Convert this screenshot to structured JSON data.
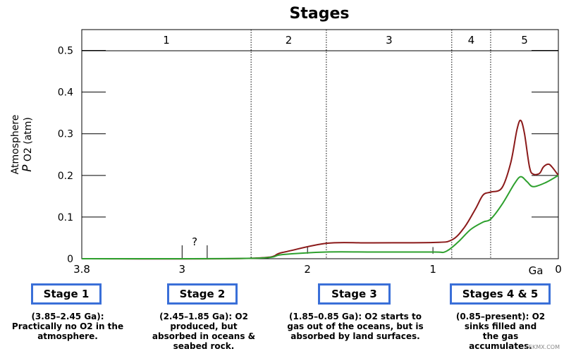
{
  "chart_data": {
    "type": "line",
    "title": "Stages",
    "ylabel_line1": "Atmosphere",
    "ylabel_italic": "P",
    "ylabel_rest": " O2 (atm)",
    "xunit": "Ga",
    "x_range": [
      3.8,
      0
    ],
    "ylim": [
      0,
      0.55
    ],
    "x_ticks": [
      {
        "v": 3.8,
        "label": "3.8"
      },
      {
        "v": 3,
        "label": "3"
      },
      {
        "v": 2,
        "label": "2"
      },
      {
        "v": 1,
        "label": "1"
      },
      {
        "v": 0,
        "label": "0"
      }
    ],
    "y_ticks": [
      {
        "v": 0,
        "label": "0"
      },
      {
        "v": 0.1,
        "label": "0.1"
      },
      {
        "v": 0.2,
        "label": "0.2"
      },
      {
        "v": 0.3,
        "label": "0.3"
      },
      {
        "v": 0.4,
        "label": "0.4"
      },
      {
        "v": 0.5,
        "label": "0.5"
      }
    ],
    "stage_bounds": [
      2.45,
      1.85,
      0.85,
      0.54
    ],
    "stage_labels": [
      {
        "from": 3.8,
        "to": 2.45,
        "label": "1"
      },
      {
        "from": 2.45,
        "to": 1.85,
        "label": "2"
      },
      {
        "from": 1.85,
        "to": 0.85,
        "label": "3"
      },
      {
        "from": 0.85,
        "to": 0.54,
        "label": "4"
      },
      {
        "from": 0.54,
        "to": 0,
        "label": "5"
      }
    ],
    "uncertain_marker": {
      "label": "?",
      "from": 3.0,
      "to": 2.8
    },
    "series": [
      {
        "color": "#8b1a1a",
        "points": [
          [
            3.8,
            0
          ],
          [
            2.45,
            0.001
          ],
          [
            2.2,
            0.015
          ],
          [
            1.85,
            0.037
          ],
          [
            1.5,
            0.038
          ],
          [
            1.0,
            0.039
          ],
          [
            0.85,
            0.045
          ],
          [
            0.75,
            0.075
          ],
          [
            0.66,
            0.12
          ],
          [
            0.6,
            0.153
          ],
          [
            0.54,
            0.16
          ],
          [
            0.45,
            0.17
          ],
          [
            0.38,
            0.23
          ],
          [
            0.33,
            0.31
          ],
          [
            0.3,
            0.332
          ],
          [
            0.27,
            0.3
          ],
          [
            0.23,
            0.22
          ],
          [
            0.2,
            0.203
          ],
          [
            0.15,
            0.205
          ],
          [
            0.12,
            0.22
          ],
          [
            0.08,
            0.227
          ],
          [
            0.05,
            0.22
          ],
          [
            0.0,
            0.2
          ]
        ]
      },
      {
        "color": "#2ea02e",
        "points": [
          [
            3.8,
            0
          ],
          [
            2.45,
            0.001
          ],
          [
            2.2,
            0.01
          ],
          [
            1.85,
            0.016
          ],
          [
            1.5,
            0.016
          ],
          [
            1.0,
            0.016
          ],
          [
            0.9,
            0.017
          ],
          [
            0.8,
            0.04
          ],
          [
            0.7,
            0.07
          ],
          [
            0.6,
            0.088
          ],
          [
            0.54,
            0.095
          ],
          [
            0.45,
            0.13
          ],
          [
            0.35,
            0.18
          ],
          [
            0.3,
            0.197
          ],
          [
            0.25,
            0.185
          ],
          [
            0.2,
            0.173
          ],
          [
            0.1,
            0.183
          ],
          [
            0.0,
            0.2
          ]
        ]
      }
    ]
  },
  "stages": [
    {
      "label": "Stage 1",
      "desc": [
        "(3.85–2.45 Ga):",
        "Practically no O2 in the",
        "atmosphere."
      ]
    },
    {
      "label": "Stage 2",
      "desc": [
        "(2.45–1.85 Ga): O2",
        "produced, but",
        "absorbed in oceans &",
        "seabed rock."
      ]
    },
    {
      "label": "Stage 3",
      "desc": [
        "(1.85–0.85 Ga): O2 starts to",
        "gas out of the oceans, but is",
        "absorbed by land surfaces."
      ]
    },
    {
      "label": "Stages 4 & 5",
      "desc": [
        "(0.85–present): O2",
        "sinks filled and",
        "the gas",
        "accumulates."
      ]
    }
  ],
  "watermark": "FEKMX.COM"
}
